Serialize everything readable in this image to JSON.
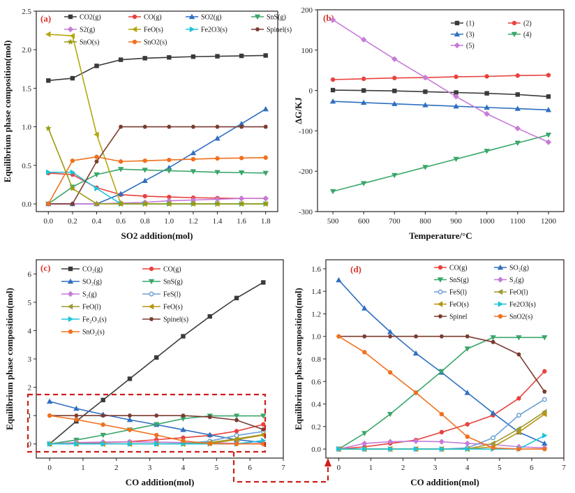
{
  "chart_data": [
    {
      "type": "line",
      "panel": "(a)",
      "xlabel": "SO2 addition(mol)",
      "ylabel": "Equilibrium phase composition(mol)",
      "xlim": [
        -0.1,
        1.9
      ],
      "ylim": [
        -0.1,
        2.5
      ],
      "xticks": [
        "0.0",
        "0.2",
        "0.4",
        "0.6",
        "0.8",
        "1.0",
        "1.2",
        "1.4",
        "1.6",
        "1.8"
      ],
      "yticks": [
        "0.0",
        "0.5",
        "1.0",
        "1.5",
        "2.0",
        "2.5"
      ],
      "x": [
        0,
        0.2,
        0.4,
        0.6,
        0.8,
        1.0,
        1.2,
        1.4,
        1.6,
        1.8
      ],
      "legend_position": "top",
      "series": [
        {
          "name": "CO2(g)",
          "color": "#3a3a3a",
          "marker": "square",
          "values": [
            1.6,
            1.63,
            1.79,
            1.87,
            1.89,
            1.9,
            1.91,
            1.915,
            1.92,
            1.925
          ]
        },
        {
          "name": "CO(g)",
          "color": "#e8423f",
          "marker": "circle",
          "values": [
            0.4,
            0.38,
            0.21,
            0.12,
            0.1,
            0.09,
            0.08,
            0.075,
            0.07,
            0.07
          ]
        },
        {
          "name": "SO2(g)",
          "color": "#2f6fbf",
          "marker": "triangle",
          "values": [
            0,
            0,
            0,
            0.13,
            0.3,
            0.47,
            0.66,
            0.85,
            1.04,
            1.23
          ]
        },
        {
          "name": "SnS(g)",
          "color": "#3aa66a",
          "marker": "triangle-down",
          "values": [
            0,
            0.22,
            0.38,
            0.45,
            0.44,
            0.43,
            0.42,
            0.41,
            0.405,
            0.4
          ]
        },
        {
          "name": "S2(g)",
          "color": "#c77bd8",
          "marker": "diamond",
          "values": [
            0,
            0,
            0,
            0.01,
            0.02,
            0.04,
            0.05,
            0.06,
            0.07,
            0.07
          ]
        },
        {
          "name": "FeO(s)",
          "color": "#b5a60e",
          "marker": "triangle-left",
          "values": [
            2.2,
            2.18,
            0.9,
            0,
            0,
            0,
            0,
            0,
            0,
            0
          ]
        },
        {
          "name": "Fe2O3(s)",
          "color": "#1fc3d8",
          "marker": "triangle-right",
          "values": [
            0.41,
            0.41,
            0.2,
            0,
            0,
            0,
            0,
            0,
            0,
            0
          ]
        },
        {
          "name": "Spinel(s)",
          "color": "#7a3b30",
          "marker": "hexagon",
          "values": [
            0,
            0,
            0.55,
            1.0,
            1.0,
            1.0,
            1.0,
            1.0,
            1.0,
            1.0
          ]
        },
        {
          "name": "SnO(s)",
          "color": "#9a9a14",
          "marker": "star",
          "values": [
            0.98,
            0.2,
            0,
            0,
            0,
            0,
            0,
            0,
            0,
            0
          ]
        },
        {
          "name": "SnO2(s)",
          "color": "#f0701e",
          "marker": "circle",
          "values": [
            0,
            0.56,
            0.61,
            0.55,
            0.56,
            0.57,
            0.58,
            0.59,
            0.595,
            0.6
          ]
        }
      ]
    },
    {
      "type": "line",
      "panel": "(b)",
      "xlabel": "Temperature/°C",
      "ylabel": "ΔG/KJ",
      "xlim": [
        450,
        1250
      ],
      "ylim": [
        -300,
        200
      ],
      "xticks": [
        "500",
        "600",
        "700",
        "800",
        "900",
        "1000",
        "1100",
        "1200"
      ],
      "yticks": [
        "-300",
        "-200",
        "-100",
        "0",
        "100",
        "200"
      ],
      "x": [
        500,
        600,
        700,
        800,
        900,
        1000,
        1100,
        1200
      ],
      "legend_position": "top-right",
      "series": [
        {
          "name": "(1)",
          "color": "#3a3a3a",
          "marker": "square",
          "values": [
            1,
            0,
            -1,
            -3,
            -5,
            -7,
            -10,
            -15
          ]
        },
        {
          "name": "(2)",
          "color": "#e8423f",
          "marker": "circle",
          "values": [
            27,
            29,
            31,
            32,
            34,
            35,
            37,
            38
          ]
        },
        {
          "name": "(3)",
          "color": "#2f6fbf",
          "marker": "triangle",
          "values": [
            -27,
            -30,
            -33,
            -36,
            -39,
            -42,
            -45,
            -48
          ]
        },
        {
          "name": "(4)",
          "color": "#3aa66a",
          "marker": "triangle-down",
          "values": [
            -250,
            -230,
            -210,
            -190,
            -170,
            -150,
            -130,
            -110
          ]
        },
        {
          "name": "(5)",
          "color": "#c77bd8",
          "marker": "diamond",
          "values": [
            175,
            126,
            78,
            32,
            -15,
            -58,
            -94,
            -128
          ]
        }
      ]
    },
    {
      "type": "line",
      "panel": "(c)",
      "xlabel": "CO addition(mol)",
      "ylabel": "Equilibrium phase composition(mol)",
      "xlim": [
        -0.4,
        7
      ],
      "ylim": [
        -0.5,
        6.5
      ],
      "xticks": [
        "0",
        "1",
        "2",
        "3",
        "4",
        "5",
        "6",
        "7"
      ],
      "yticks": [
        "0",
        "1",
        "2",
        "3",
        "4",
        "5",
        "6"
      ],
      "x": [
        0,
        0.8,
        1.6,
        2.4,
        3.2,
        4.0,
        4.8,
        5.6,
        6.4
      ],
      "legend_position": "top-left",
      "series": [
        {
          "name": "CO₂(g)",
          "color": "#3a3a3a",
          "marker": "square",
          "values": [
            0,
            0.8,
            1.55,
            2.3,
            3.05,
            3.8,
            4.5,
            5.15,
            5.7
          ]
        },
        {
          "name": "CO(g)",
          "color": "#e8423f",
          "marker": "circle",
          "values": [
            0,
            0.02,
            0.05,
            0.08,
            0.15,
            0.22,
            0.3,
            0.45,
            0.69
          ]
        },
        {
          "name": "SO₂(g)",
          "color": "#2f6fbf",
          "marker": "triangle",
          "values": [
            1.5,
            1.25,
            1.04,
            0.85,
            0.68,
            0.5,
            0.32,
            0.15,
            0.05
          ]
        },
        {
          "name": "SnS(g)",
          "color": "#3aa66a",
          "marker": "triangle-down",
          "values": [
            0,
            0.14,
            0.31,
            0.5,
            0.69,
            0.89,
            0.99,
            0.99,
            0.99
          ]
        },
        {
          "name": "S₂(g)",
          "color": "#c77bd8",
          "marker": "diamond",
          "values": [
            0,
            0.05,
            0.065,
            0.07,
            0.065,
            0.05,
            0.04,
            0.02,
            0.01
          ]
        },
        {
          "name": "FeS(l)",
          "color": "#6b9fd4",
          "marker": "circle-open",
          "values": [
            0,
            0,
            0,
            0,
            0,
            0.01,
            0.1,
            0.3,
            0.44
          ]
        },
        {
          "name": "FeO(l)",
          "color": "#9c9a33",
          "marker": "triangle-left",
          "values": [
            0,
            0,
            0,
            0,
            0,
            0,
            0.05,
            0.18,
            0.33
          ]
        },
        {
          "name": "FeO(s)",
          "color": "#b5950e",
          "marker": "triangle-left",
          "values": [
            0,
            0,
            0,
            0,
            0,
            0,
            0.02,
            0.15,
            0.31
          ]
        },
        {
          "name": "Fe₂O₃(s)",
          "color": "#1fc3d8",
          "marker": "triangle-right",
          "values": [
            0,
            0,
            0,
            0,
            0,
            0,
            0,
            0,
            0.12
          ]
        },
        {
          "name": "Spinel(s)",
          "color": "#7a3b30",
          "marker": "hexagon",
          "values": [
            1.0,
            1.0,
            1.0,
            1.0,
            1.0,
            1.0,
            0.95,
            0.84,
            0.51
          ]
        },
        {
          "name": "SnO₂(s)",
          "color": "#f0701e",
          "marker": "circle",
          "values": [
            1.0,
            0.86,
            0.68,
            0.5,
            0.31,
            0.11,
            0.01,
            0,
            0
          ]
        }
      ]
    },
    {
      "type": "line",
      "panel": "(d)",
      "xlabel": "CO addition(mol)",
      "ylabel": "Equilibrium phase composition(mol)",
      "xlim": [
        -0.4,
        7
      ],
      "ylim": [
        -0.08,
        1.68
      ],
      "xticks": [
        "0",
        "1",
        "2",
        "3",
        "4",
        "5",
        "6",
        "7"
      ],
      "yticks": [
        "0.0",
        "0.2",
        "0.4",
        "0.6",
        "0.8",
        "1.0",
        "1.2",
        "1.4",
        "1.6"
      ],
      "x": [
        0,
        0.8,
        1.6,
        2.4,
        3.2,
        4.0,
        4.8,
        5.6,
        6.4
      ],
      "legend_position": "top-right",
      "series": [
        {
          "name": "CO(g)",
          "color": "#e8423f",
          "marker": "circle",
          "values": [
            0,
            0.02,
            0.05,
            0.08,
            0.15,
            0.22,
            0.3,
            0.45,
            0.69
          ]
        },
        {
          "name": "SO₂(g)",
          "color": "#2f6fbf",
          "marker": "triangle",
          "values": [
            1.5,
            1.25,
            1.04,
            0.85,
            0.68,
            0.5,
            0.32,
            0.15,
            0.05
          ]
        },
        {
          "name": "SnS(g)",
          "color": "#3aa66a",
          "marker": "triangle-down",
          "values": [
            0,
            0.14,
            0.31,
            0.5,
            0.69,
            0.89,
            0.99,
            0.99,
            0.99
          ]
        },
        {
          "name": "S₂(g)",
          "color": "#c77bd8",
          "marker": "diamond",
          "values": [
            0,
            0.05,
            0.065,
            0.07,
            0.065,
            0.05,
            0.04,
            0.02,
            0.01
          ]
        },
        {
          "name": "FeS(l)",
          "color": "#6b9fd4",
          "marker": "circle-open",
          "values": [
            0,
            0,
            0,
            0,
            0,
            0.01,
            0.1,
            0.3,
            0.44
          ]
        },
        {
          "name": "FeO(l)",
          "color": "#9c9a33",
          "marker": "triangle-left",
          "values": [
            0,
            0,
            0,
            0,
            0,
            0,
            0.05,
            0.18,
            0.33
          ]
        },
        {
          "name": "FeO(s)",
          "color": "#b5950e",
          "marker": "triangle-left",
          "values": [
            0,
            0,
            0,
            0,
            0,
            0,
            0.02,
            0.15,
            0.31
          ]
        },
        {
          "name": "Fe2O3(s)",
          "color": "#1fc3d8",
          "marker": "triangle-right",
          "values": [
            0,
            0,
            0,
            0,
            0,
            0,
            0,
            0,
            0.12
          ]
        },
        {
          "name": "Spinel",
          "color": "#7a3b30",
          "marker": "hexagon",
          "values": [
            1.0,
            1.0,
            1.0,
            1.0,
            1.0,
            1.0,
            0.95,
            0.84,
            0.51
          ]
        },
        {
          "name": "SnO2(s)",
          "color": "#f0701e",
          "marker": "circle",
          "values": [
            1.0,
            0.86,
            0.68,
            0.5,
            0.31,
            0.11,
            0.01,
            0,
            0
          ]
        }
      ]
    }
  ]
}
